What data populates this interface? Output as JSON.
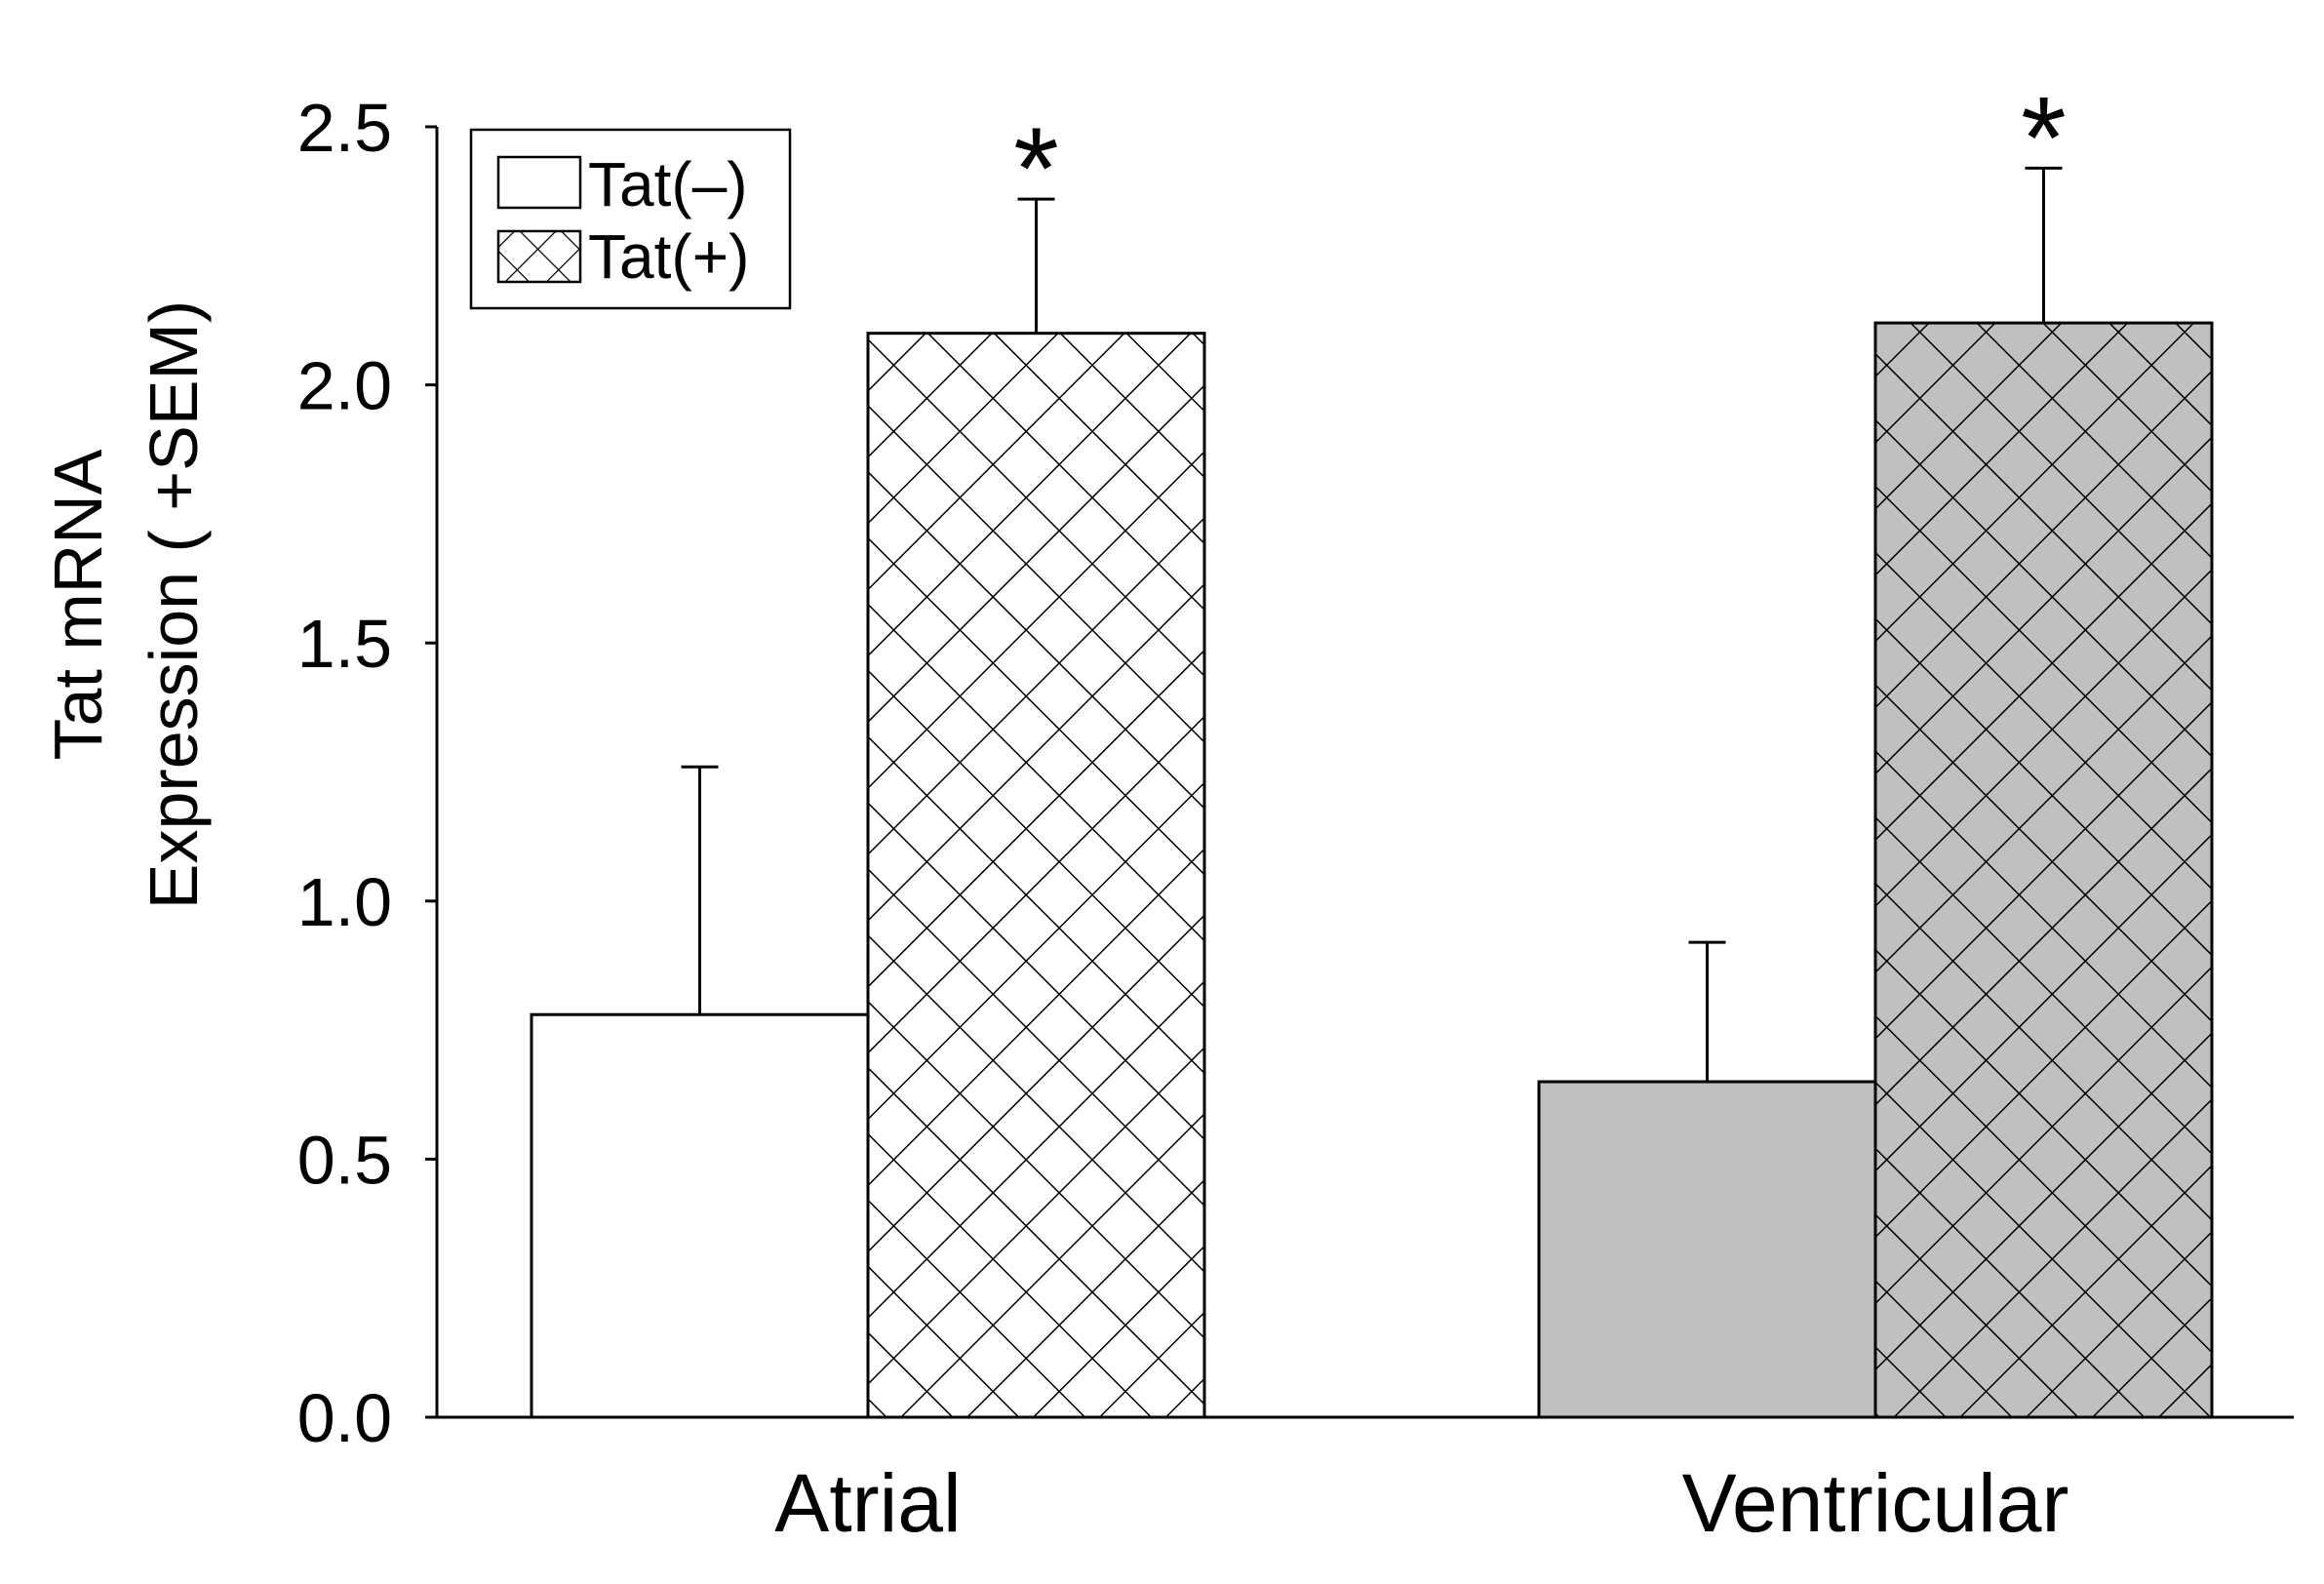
{
  "chart_data": {
    "type": "bar",
    "title": "",
    "xlabel": "",
    "ylabel_lines": [
      "Tat mRNA",
      "Expression ( +SEM)"
    ],
    "ylim": [
      0,
      2.5
    ],
    "yticks": [
      0.0,
      0.5,
      1.0,
      1.5,
      2.0,
      2.5
    ],
    "ytick_labels": [
      "0.0",
      "0.5",
      "1.0",
      "1.5",
      "2.0",
      "2.5"
    ],
    "categories": [
      "Atrial",
      "Ventricular"
    ],
    "series": [
      {
        "name": "Tat(–)",
        "pattern": "solid",
        "values": [
          0.78,
          0.65
        ],
        "errors": [
          0.48,
          0.27
        ],
        "fill_colors": [
          "#ffffff",
          "#c0c0c0"
        ]
      },
      {
        "name": "Tat(+)",
        "pattern": "crosshatch",
        "values": [
          2.1,
          2.12
        ],
        "errors": [
          0.26,
          0.3
        ],
        "fill_colors": [
          "#ffffff",
          "#c0c0c0"
        ],
        "significance": [
          "*",
          "*"
        ]
      }
    ],
    "legend": {
      "position": "top-left",
      "entries": [
        "Tat(–)",
        "Tat(+)"
      ]
    },
    "grid": false
  }
}
